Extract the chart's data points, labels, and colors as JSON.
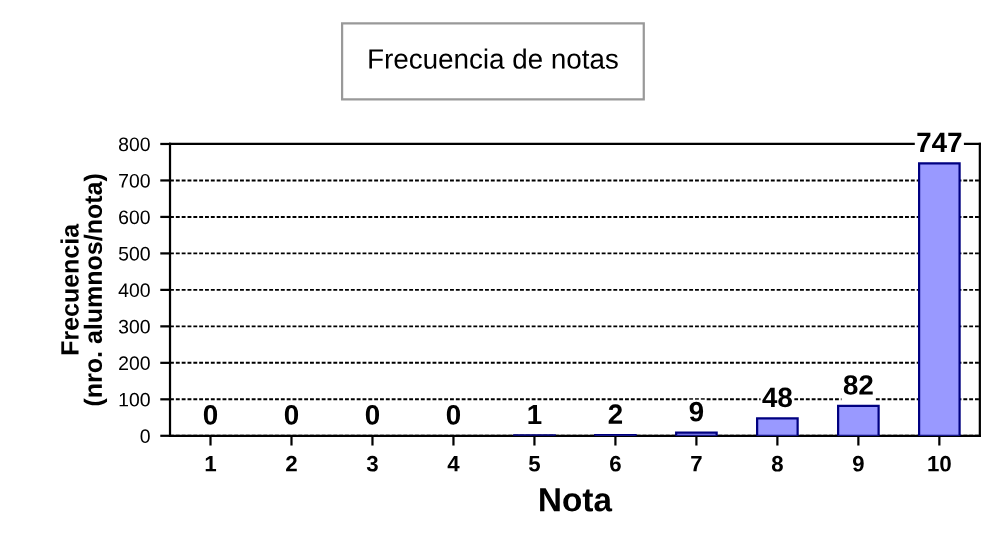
{
  "chart_data": {
    "type": "bar",
    "title": "Frecuencia de notas",
    "xlabel": "Nota",
    "ylabel": "Frecuencia\n(nro. alumnos/nota)",
    "categories": [
      "1",
      "2",
      "3",
      "4",
      "5",
      "6",
      "7",
      "8",
      "9",
      "10"
    ],
    "values": [
      0,
      0,
      0,
      0,
      1,
      2,
      9,
      48,
      82,
      747
    ],
    "color": "#9999ff",
    "ylim": [
      0,
      800
    ],
    "yticks": [
      0,
      100,
      200,
      300,
      400,
      500,
      600,
      700,
      800
    ],
    "grid": "y",
    "data_labels": true
  }
}
